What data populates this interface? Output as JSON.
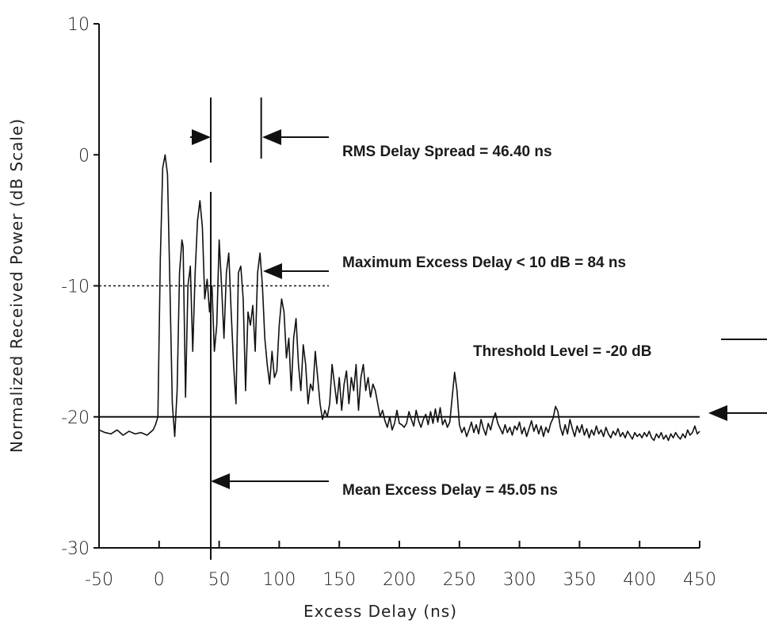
{
  "chart_data": {
    "type": "line",
    "x_label": "Excess Delay (ns)",
    "y_label": "Normalized Received Power (dB Scale)",
    "annotations": [
      "RMS Delay Spread = 46.40 ns",
      "Maximum Excess Delay < 10 dB = 84 ns",
      "Threshold Level = -20 dB",
      "Mean Excess Delay = 45.05 ns"
    ],
    "xlim": [
      -50,
      450
    ],
    "xticks": [
      -50,
      0,
      50,
      100,
      150,
      200,
      250,
      300,
      350,
      400,
      450
    ],
    "ylim": [
      -30,
      10
    ],
    "yticks": [
      10,
      0,
      -10,
      -20,
      -30
    ],
    "hlines": [
      -20,
      -10
    ],
    "vlines": [
      43,
      85
    ],
    "x": [
      -50,
      -45,
      -40,
      -35,
      -30,
      -25,
      -20,
      -15,
      -10,
      -5,
      -3,
      -1,
      1,
      3,
      5,
      7,
      9,
      11,
      13,
      15,
      17,
      19,
      20,
      22,
      24,
      26,
      28,
      30,
      32,
      34,
      36,
      38,
      40,
      42,
      44,
      46,
      48,
      50,
      52,
      54,
      56,
      58,
      60,
      62,
      64,
      66,
      68,
      70,
      72,
      74,
      76,
      78,
      80,
      82,
      84,
      86,
      88,
      90,
      92,
      94,
      96,
      98,
      100,
      102,
      104,
      106,
      108,
      110,
      112,
      114,
      116,
      118,
      120,
      122,
      124,
      126,
      128,
      130,
      132,
      134,
      136,
      138,
      140,
      142,
      144,
      146,
      148,
      150,
      152,
      154,
      156,
      158,
      160,
      162,
      164,
      166,
      168,
      170,
      172,
      174,
      176,
      178,
      180,
      182,
      184,
      186,
      188,
      190,
      192,
      194,
      196,
      198,
      200,
      202,
      204,
      206,
      208,
      210,
      212,
      214,
      216,
      218,
      220,
      222,
      224,
      226,
      228,
      230,
      232,
      234,
      236,
      238,
      240,
      242,
      244,
      246,
      248,
      250,
      252,
      254,
      256,
      258,
      260,
      262,
      264,
      266,
      268,
      270,
      272,
      274,
      276,
      278,
      280,
      282,
      284,
      286,
      288,
      290,
      292,
      294,
      296,
      298,
      300,
      302,
      304,
      306,
      308,
      310,
      312,
      314,
      316,
      318,
      320,
      322,
      324,
      326,
      328,
      330,
      332,
      334,
      336,
      338,
      340,
      342,
      344,
      346,
      348,
      350,
      352,
      354,
      356,
      358,
      360,
      362,
      364,
      366,
      368,
      370,
      372,
      374,
      376,
      378,
      380,
      382,
      384,
      386,
      388,
      390,
      392,
      394,
      396,
      398,
      400,
      402,
      404,
      406,
      408,
      410,
      412,
      414,
      416,
      418,
      420,
      422,
      424,
      426,
      428,
      430,
      432,
      434,
      436,
      438,
      440,
      442,
      444,
      446,
      448,
      450
    ],
    "series": [
      {
        "color": "#111111",
        "values": [
          -21,
          -21.2,
          -21.3,
          -21,
          -21.4,
          -21.1,
          -21.3,
          -21.2,
          -21.4,
          -21,
          -20.6,
          -20,
          -8,
          -1,
          0,
          -1.5,
          -10,
          -19,
          -21.5,
          -18,
          -9,
          -6.5,
          -7,
          -18.5,
          -10,
          -8.5,
          -15,
          -9,
          -5,
          -3.5,
          -5.5,
          -11,
          -9.5,
          -12,
          -10,
          -15,
          -13,
          -6.5,
          -10,
          -14,
          -9,
          -7.5,
          -12,
          -16,
          -19,
          -9,
          -8.5,
          -11,
          -18,
          -12,
          -13,
          -11.5,
          -15,
          -9,
          -7.5,
          -10,
          -14,
          -16,
          -17.5,
          -15,
          -17,
          -16.5,
          -13,
          -11,
          -12,
          -15.5,
          -14,
          -18,
          -14,
          -12.5,
          -16,
          -18,
          -14.5,
          -16,
          -19,
          -17.5,
          -18,
          -15,
          -17,
          -19,
          -20.2,
          -19.5,
          -20,
          -19,
          -16,
          -17.5,
          -19,
          -17,
          -19.5,
          -17.5,
          -16.5,
          -19,
          -17,
          -18,
          -16,
          -19.5,
          -17,
          -16,
          -18,
          -17,
          -18.5,
          -17.5,
          -18,
          -19,
          -20,
          -19.5,
          -20.3,
          -20.8,
          -20,
          -21,
          -20.5,
          -19.5,
          -20.5,
          -20.6,
          -20.8,
          -20.5,
          -19.6,
          -20.2,
          -20.7,
          -19.5,
          -20.3,
          -20.8,
          -20.2,
          -19.8,
          -20.6,
          -19.6,
          -20.5,
          -19.4,
          -20.4,
          -19.3,
          -20.6,
          -20.2,
          -20.8,
          -20.4,
          -18.5,
          -16.6,
          -18,
          -20.6,
          -21.2,
          -20.8,
          -21.5,
          -21,
          -20.4,
          -21.2,
          -20.6,
          -21.3,
          -20.2,
          -20.9,
          -21.4,
          -20.5,
          -21,
          -20.2,
          -19.7,
          -20.5,
          -20.9,
          -21.3,
          -20.6,
          -21.2,
          -20.8,
          -21.4,
          -20.7,
          -21,
          -20.4,
          -21.3,
          -20.8,
          -21.5,
          -20.9,
          -20.3,
          -21.1,
          -20.6,
          -21.3,
          -20.7,
          -21.5,
          -20.8,
          -21.2,
          -20.5,
          -20.1,
          -19.2,
          -19.6,
          -20.8,
          -21.4,
          -20.6,
          -21.3,
          -20.2,
          -20.9,
          -21.5,
          -20.7,
          -21.2,
          -20.6,
          -21.4,
          -20.9,
          -21.6,
          -21,
          -21.4,
          -20.7,
          -21.3,
          -21,
          -21.5,
          -20.8,
          -21.3,
          -21.6,
          -21.1,
          -21.4,
          -20.9,
          -21.5,
          -21.2,
          -21.6,
          -21.1,
          -21.4,
          -21.7,
          -21.2,
          -21.5,
          -21.3,
          -21.6,
          -21.2,
          -21.5,
          -21.1,
          -21.6,
          -21.8,
          -21.3,
          -21.6,
          -21.2,
          -21.7,
          -21.4,
          -21.8,
          -21.3,
          -21.6,
          -21.2,
          -21.5,
          -21.7,
          -21.3,
          -21.6,
          -21,
          -21.4,
          -21.2,
          -20.7,
          -21.3,
          -21.1
        ]
      }
    ]
  }
}
